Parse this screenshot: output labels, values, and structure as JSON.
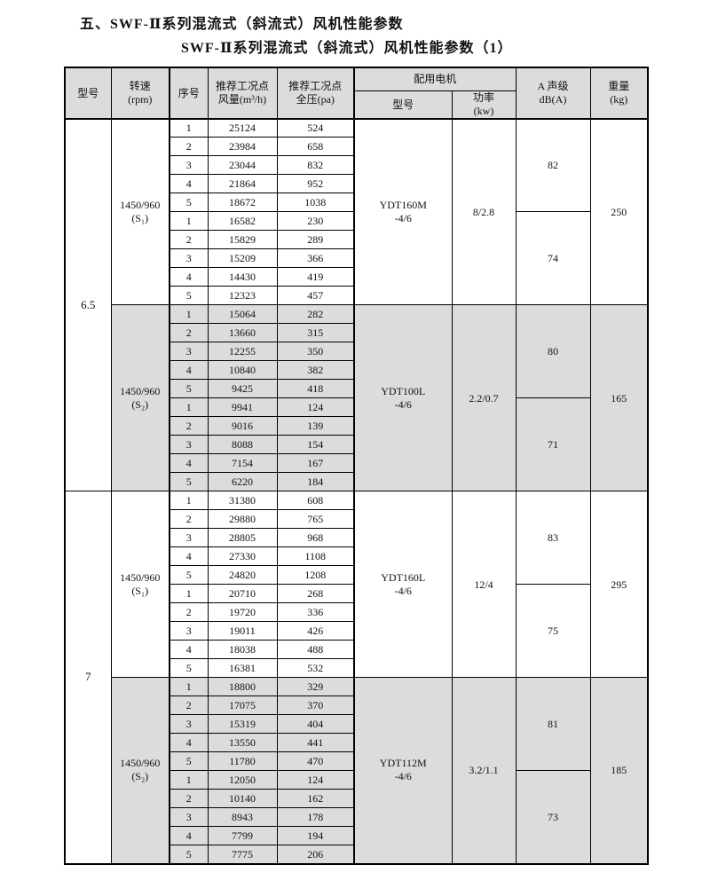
{
  "title": {
    "line1": "五、SWF-Ⅱ系列混流式（斜流式）风机性能参数",
    "line2": "SWF-Ⅱ系列混流式（斜流式）风机性能参数（1）"
  },
  "table": {
    "header": {
      "model": "型号",
      "speed": [
        "转速",
        "(rpm)"
      ],
      "seq": "序号",
      "flow": [
        "推荐工况点",
        "风量(m³/h)"
      ],
      "pressure": [
        "推荐工况点",
        "全压(pa)"
      ],
      "motor_group": "配用电机",
      "motor_model": "型号",
      "motor_power": [
        "功率",
        "(kw)"
      ],
      "noise": [
        "A 声级",
        "dB(A)"
      ],
      "weight": [
        "重量",
        "(kg)"
      ]
    },
    "shade_color": "#dcdcdc",
    "groups": [
      {
        "model": "6.5",
        "blocks": [
          {
            "speed": [
              "1450/960",
              "(S₁)"
            ],
            "shaded": false,
            "rows": [
              [
                "1",
                "25124",
                "524"
              ],
              [
                "2",
                "23984",
                "658"
              ],
              [
                "3",
                "23044",
                "832"
              ],
              [
                "4",
                "21864",
                "952"
              ],
              [
                "5",
                "18672",
                "1038"
              ],
              [
                "1",
                "16582",
                "230"
              ],
              [
                "2",
                "15829",
                "289"
              ],
              [
                "3",
                "15209",
                "366"
              ],
              [
                "4",
                "14430",
                "419"
              ],
              [
                "5",
                "12323",
                "457"
              ]
            ],
            "motor": [
              "YDT160M",
              "-4/6"
            ],
            "power": "8/2.8",
            "db": [
              "82",
              "74"
            ],
            "weight": "250"
          },
          {
            "speed": [
              "1450/960",
              "(S₂)"
            ],
            "shaded": true,
            "rows": [
              [
                "1",
                "15064",
                "282"
              ],
              [
                "2",
                "13660",
                "315"
              ],
              [
                "3",
                "12255",
                "350"
              ],
              [
                "4",
                "10840",
                "382"
              ],
              [
                "5",
                "9425",
                "418"
              ],
              [
                "1",
                "9941",
                "124"
              ],
              [
                "2",
                "9016",
                "139"
              ],
              [
                "3",
                "8088",
                "154"
              ],
              [
                "4",
                "7154",
                "167"
              ],
              [
                "5",
                "6220",
                "184"
              ]
            ],
            "motor": [
              "YDT100L",
              "-4/6"
            ],
            "power": "2.2/0.7",
            "db": [
              "80",
              "71"
            ],
            "weight": "165"
          }
        ]
      },
      {
        "model": "7",
        "blocks": [
          {
            "speed": [
              "1450/960",
              "(S₁)"
            ],
            "shaded": false,
            "rows": [
              [
                "1",
                "31380",
                "608"
              ],
              [
                "2",
                "29880",
                "765"
              ],
              [
                "3",
                "28805",
                "968"
              ],
              [
                "4",
                "27330",
                "1108"
              ],
              [
                "5",
                "24820",
                "1208"
              ],
              [
                "1",
                "20710",
                "268"
              ],
              [
                "2",
                "19720",
                "336"
              ],
              [
                "3",
                "19011",
                "426"
              ],
              [
                "4",
                "18038",
                "488"
              ],
              [
                "5",
                "16381",
                "532"
              ]
            ],
            "motor": [
              "YDT160L",
              "-4/6"
            ],
            "power": "12/4",
            "db": [
              "83",
              "75"
            ],
            "weight": "295"
          },
          {
            "speed": [
              "1450/960",
              "(S₂)"
            ],
            "shaded": true,
            "rows": [
              [
                "1",
                "18800",
                "329"
              ],
              [
                "2",
                "17075",
                "370"
              ],
              [
                "3",
                "15319",
                "404"
              ],
              [
                "4",
                "13550",
                "441"
              ],
              [
                "5",
                "11780",
                "470"
              ],
              [
                "1",
                "12050",
                "124"
              ],
              [
                "2",
                "10140",
                "162"
              ],
              [
                "3",
                "8943",
                "178"
              ],
              [
                "4",
                "7799",
                "194"
              ],
              [
                "5",
                "7775",
                "206"
              ]
            ],
            "motor": [
              "YDT112M",
              "-4/6"
            ],
            "power": "3.2/1.1",
            "db": [
              "81",
              "73"
            ],
            "weight": "185"
          }
        ]
      }
    ]
  }
}
